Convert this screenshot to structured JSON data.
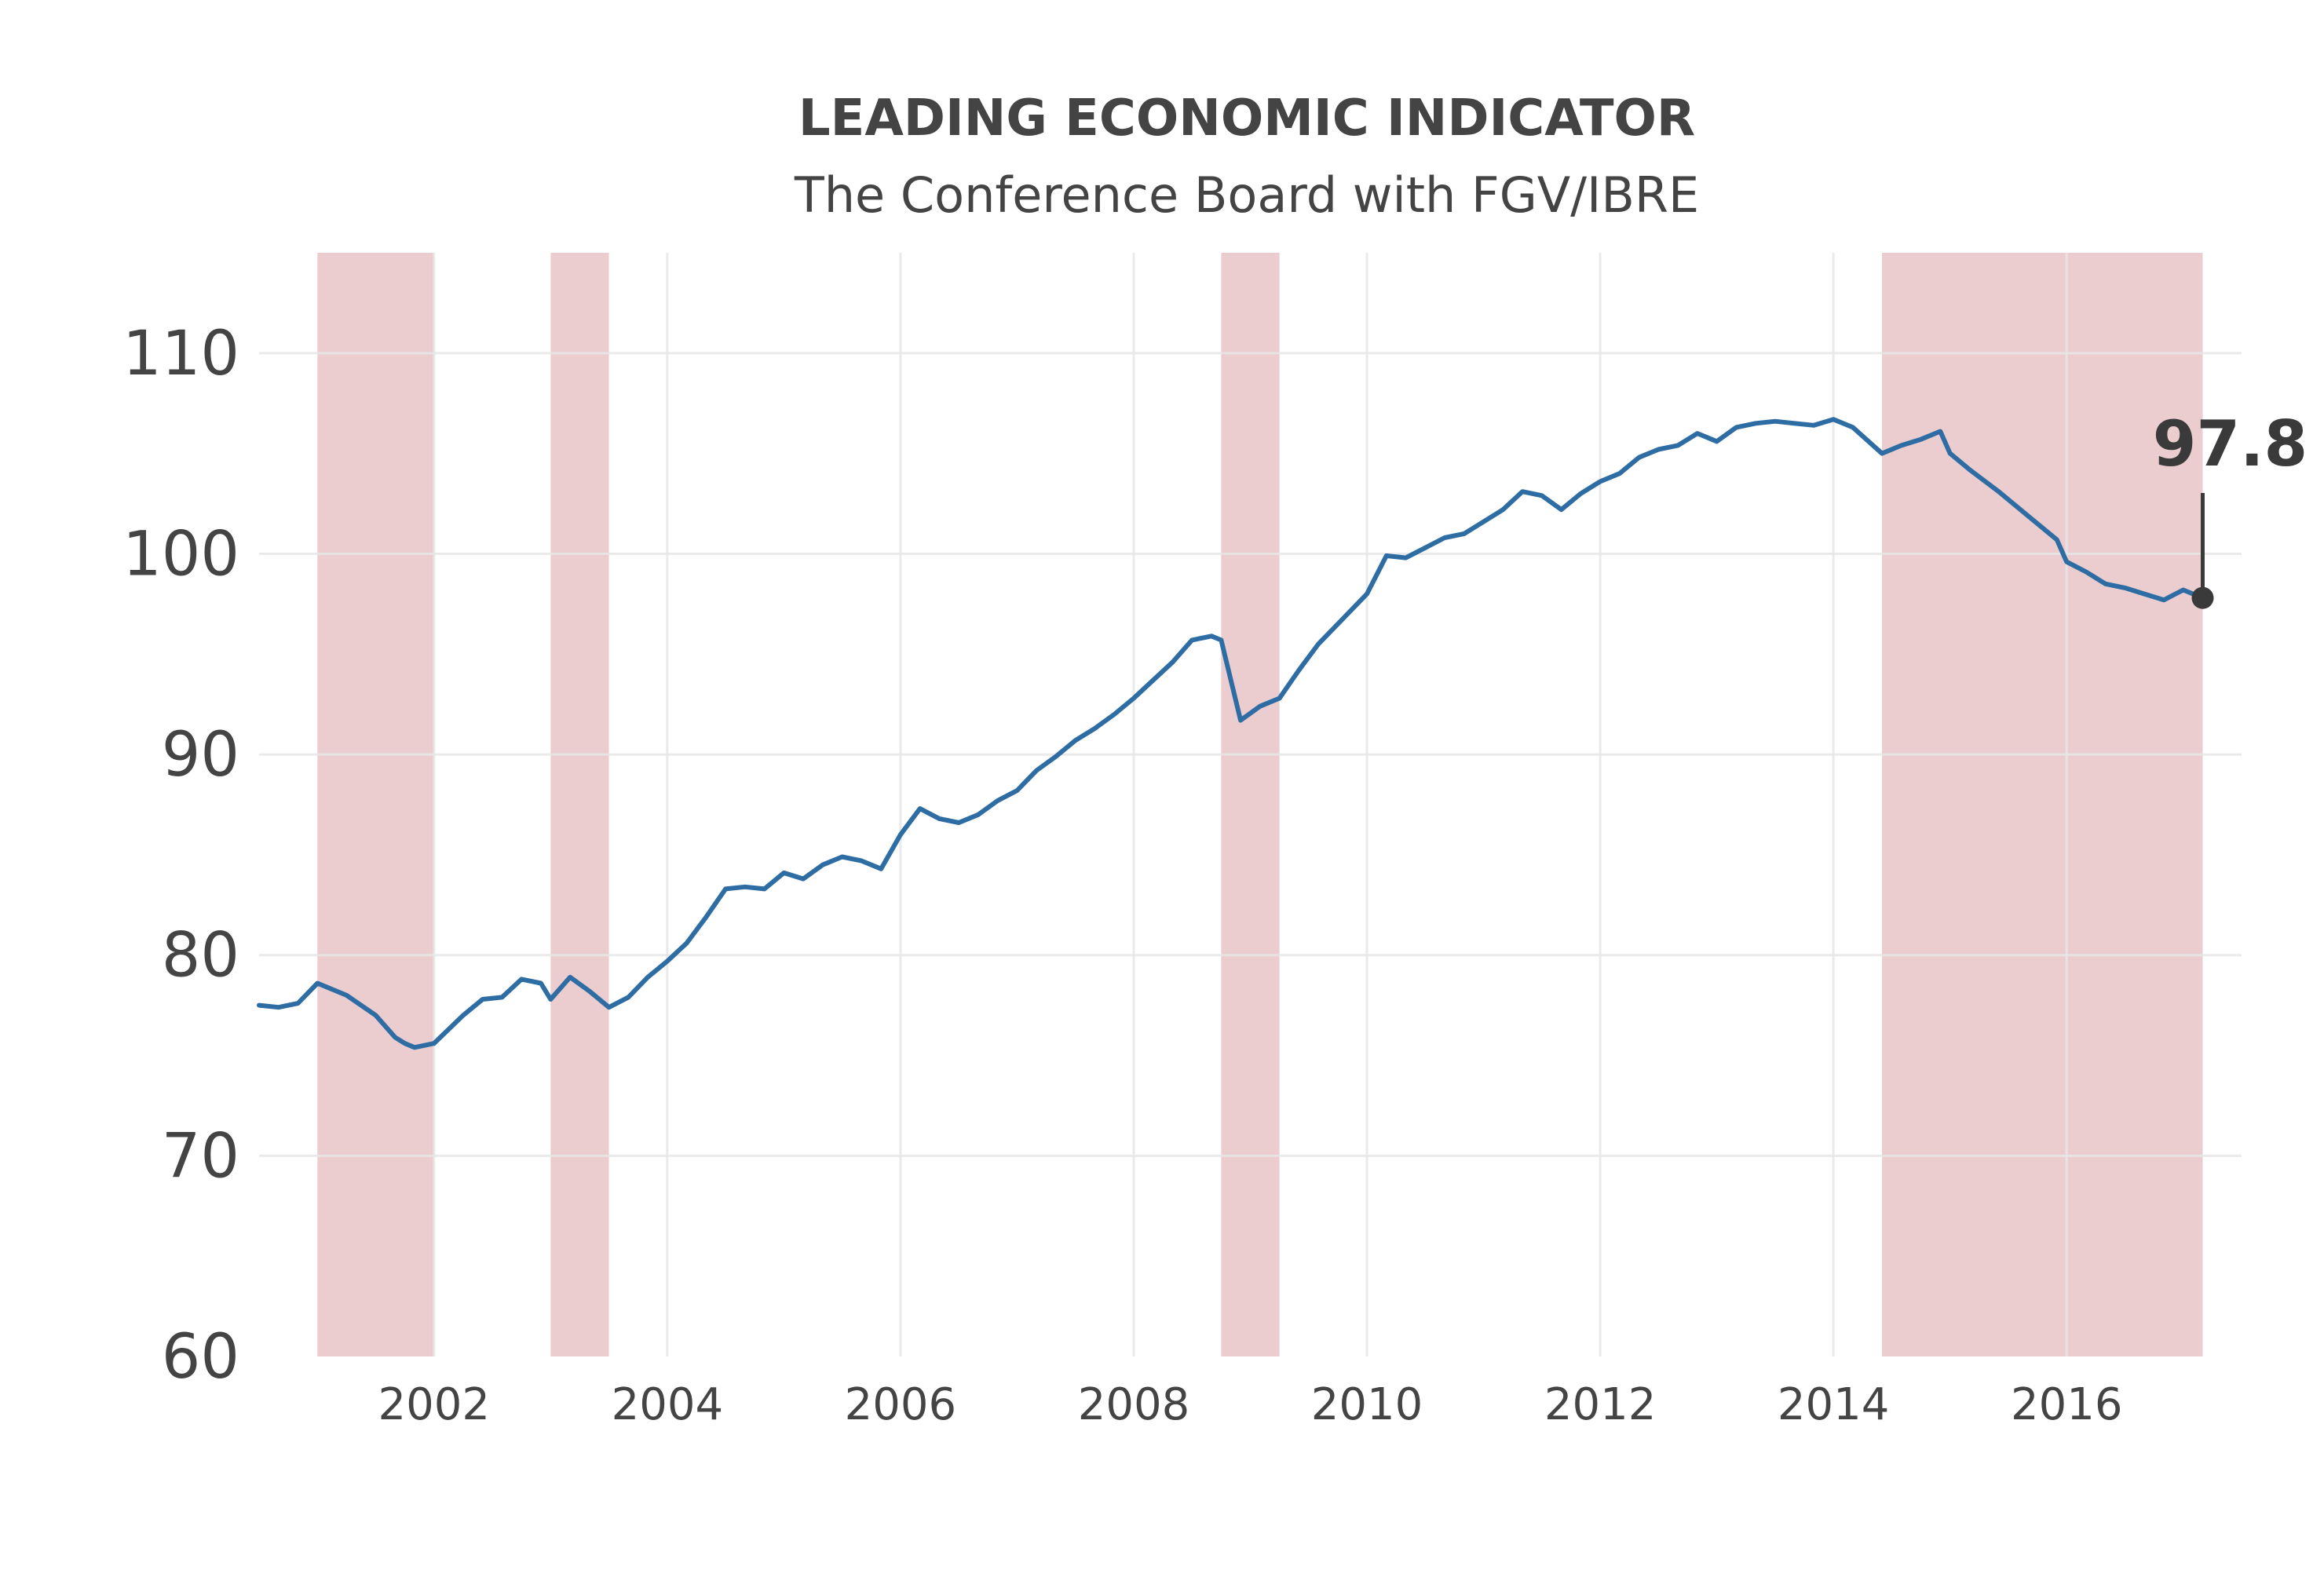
{
  "chart_data": {
    "type": "line",
    "title": "LEADING ECONOMIC INDICATOR",
    "subtitle": "The Conference Board with FGV/IBRE",
    "xlabel": "",
    "ylabel": "",
    "xlim": [
      "2000-07",
      "2017-07"
    ],
    "ylim": [
      60,
      115
    ],
    "yticks": [
      60,
      70,
      80,
      90,
      100,
      110
    ],
    "ytick_labels": [
      "60",
      "70",
      "80",
      "90",
      "100",
      "110"
    ],
    "xticks": [
      "2002-01",
      "2004-01",
      "2006-01",
      "2008-01",
      "2010-01",
      "2012-01",
      "2014-01",
      "2016-01"
    ],
    "xtick_labels": [
      "2002",
      "2004",
      "2006",
      "2008",
      "2010",
      "2012",
      "2014",
      "2016"
    ],
    "grid": true,
    "line_color": "#2e6da4",
    "recession_color": "#e8c4c8",
    "recessions": [
      {
        "start": "2001-01",
        "end": "2002-01"
      },
      {
        "start": "2003-01",
        "end": "2003-07"
      },
      {
        "start": "2008-10",
        "end": "2009-04"
      },
      {
        "start": "2014-06",
        "end": "2017-03"
      }
    ],
    "series": [
      {
        "points": [
          [
            "2000-07",
            77.5
          ],
          [
            "2000-09",
            77.4
          ],
          [
            "2000-11",
            77.6
          ],
          [
            "2001-01",
            78.6
          ],
          [
            "2001-04",
            78.0
          ],
          [
            "2001-07",
            77.0
          ],
          [
            "2001-09",
            75.9
          ],
          [
            "2001-10",
            75.6
          ],
          [
            "2001-11",
            75.4
          ],
          [
            "2002-01",
            75.6
          ],
          [
            "2002-04",
            77.0
          ],
          [
            "2002-06",
            77.8
          ],
          [
            "2002-08",
            77.9
          ],
          [
            "2002-10",
            78.8
          ],
          [
            "2002-12",
            78.6
          ],
          [
            "2003-01",
            77.8
          ],
          [
            "2003-03",
            78.9
          ],
          [
            "2003-05",
            78.2
          ],
          [
            "2003-07",
            77.4
          ],
          [
            "2003-09",
            77.9
          ],
          [
            "2003-11",
            78.9
          ],
          [
            "2004-01",
            79.7
          ],
          [
            "2004-03",
            80.6
          ],
          [
            "2004-05",
            81.9
          ],
          [
            "2004-07",
            83.3
          ],
          [
            "2004-09",
            83.4
          ],
          [
            "2004-11",
            83.3
          ],
          [
            "2005-01",
            84.1
          ],
          [
            "2005-03",
            83.8
          ],
          [
            "2005-05",
            84.5
          ],
          [
            "2005-07",
            84.9
          ],
          [
            "2005-09",
            84.7
          ],
          [
            "2005-11",
            84.3
          ],
          [
            "2006-01",
            86.0
          ],
          [
            "2006-03",
            87.3
          ],
          [
            "2006-05",
            86.8
          ],
          [
            "2006-07",
            86.6
          ],
          [
            "2006-09",
            87.0
          ],
          [
            "2006-11",
            87.7
          ],
          [
            "2007-01",
            88.2
          ],
          [
            "2007-03",
            89.2
          ],
          [
            "2007-05",
            89.9
          ],
          [
            "2007-07",
            90.7
          ],
          [
            "2007-09",
            91.3
          ],
          [
            "2007-11",
            92.0
          ],
          [
            "2008-01",
            92.8
          ],
          [
            "2008-03",
            93.7
          ],
          [
            "2008-05",
            94.6
          ],
          [
            "2008-07",
            95.7
          ],
          [
            "2008-09",
            95.9
          ],
          [
            "2008-10",
            95.7
          ],
          [
            "2008-12",
            91.7
          ],
          [
            "2009-02",
            92.4
          ],
          [
            "2009-04",
            92.8
          ],
          [
            "2009-06",
            94.2
          ],
          [
            "2009-08",
            95.5
          ],
          [
            "2009-10",
            96.5
          ],
          [
            "2010-01",
            98.0
          ],
          [
            "2010-03",
            99.9
          ],
          [
            "2010-05",
            99.8
          ],
          [
            "2010-07",
            100.3
          ],
          [
            "2010-09",
            100.8
          ],
          [
            "2010-11",
            101.0
          ],
          [
            "2011-01",
            101.6
          ],
          [
            "2011-03",
            102.2
          ],
          [
            "2011-05",
            103.1
          ],
          [
            "2011-07",
            102.9
          ],
          [
            "2011-09",
            102.2
          ],
          [
            "2011-11",
            103.0
          ],
          [
            "2012-01",
            103.6
          ],
          [
            "2012-03",
            104.0
          ],
          [
            "2012-05",
            104.8
          ],
          [
            "2012-07",
            105.2
          ],
          [
            "2012-09",
            105.4
          ],
          [
            "2012-11",
            106.0
          ],
          [
            "2013-01",
            105.6
          ],
          [
            "2013-03",
            106.3
          ],
          [
            "2013-05",
            106.5
          ],
          [
            "2013-07",
            106.6
          ],
          [
            "2013-09",
            106.5
          ],
          [
            "2013-11",
            106.4
          ],
          [
            "2014-01",
            106.7
          ],
          [
            "2014-03",
            106.3
          ],
          [
            "2014-06",
            105.0
          ],
          [
            "2014-08",
            105.4
          ],
          [
            "2014-10",
            105.7
          ],
          [
            "2014-12",
            106.1
          ],
          [
            "2015-01",
            105.0
          ],
          [
            "2015-03",
            104.2
          ],
          [
            "2015-06",
            103.1
          ],
          [
            "2015-09",
            101.9
          ],
          [
            "2015-12",
            100.7
          ],
          [
            "2016-01",
            99.6
          ],
          [
            "2016-03",
            99.1
          ],
          [
            "2016-05",
            98.5
          ],
          [
            "2016-07",
            98.3
          ],
          [
            "2016-09",
            98.0
          ],
          [
            "2016-11",
            97.7
          ],
          [
            "2017-01",
            98.2
          ],
          [
            "2017-03",
            97.8
          ]
        ]
      }
    ],
    "annotation": {
      "x": "2017-03",
      "y": 97.8,
      "text": "97.8"
    }
  }
}
